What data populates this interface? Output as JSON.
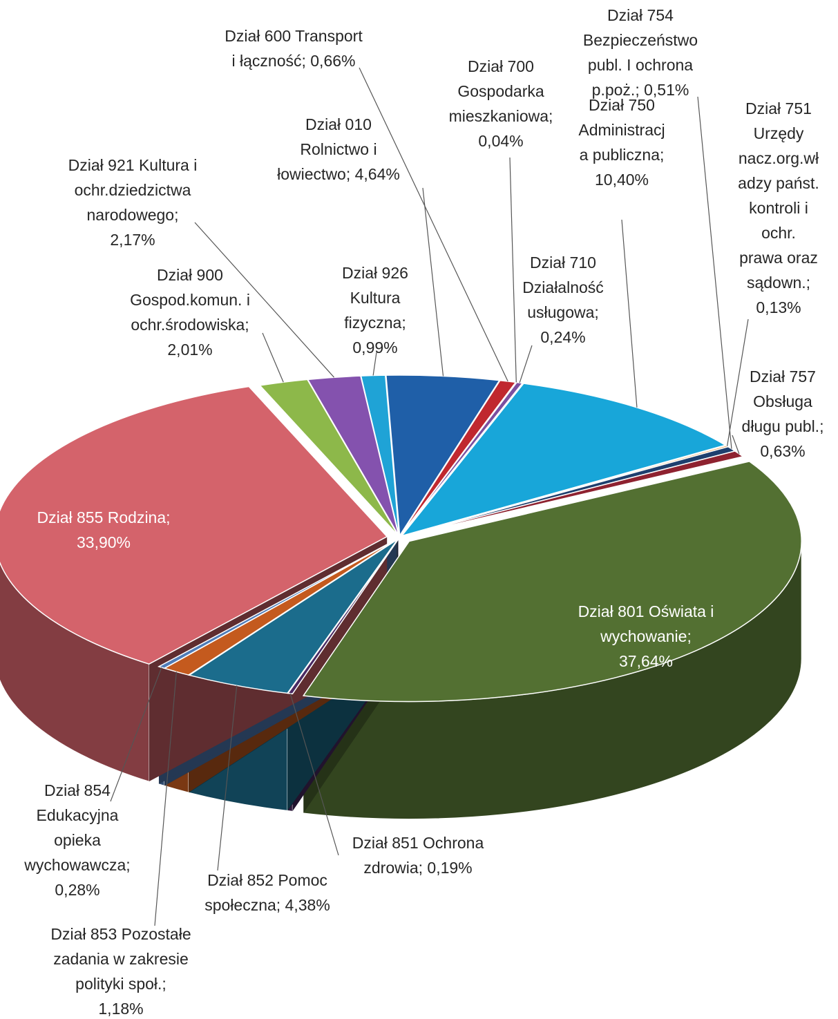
{
  "chart_data": {
    "type": "pie",
    "style": "3d-exploded",
    "title": "",
    "legend": "none",
    "slices": [
      {
        "name": "Dział 010 Rolnictwo i łowiectwo",
        "value": 4.64,
        "label": [
          "Dział 010",
          "Rolnictwo i",
          "łowiectwo; 4,64%"
        ],
        "color": "#1F5FA8"
      },
      {
        "name": "Dział 600 Transport i łączność",
        "value": 0.66,
        "label": [
          "Dział 600 Transport",
          "i łączność; 0,66%"
        ],
        "color": "#C0282F"
      },
      {
        "name": "Dział 700 Gospodarka mieszkaniowa",
        "value": 0.04,
        "label": [
          "Dział 700",
          "Gospodarka",
          "mieszkaniowa;",
          "0,04%"
        ],
        "color": "#7FA33A"
      },
      {
        "name": "Dział 710 Działalność usługowa",
        "value": 0.24,
        "label": [
          "Dział 710",
          "Działalność",
          "usługowa;",
          "0,24%"
        ],
        "color": "#7B4FA0"
      },
      {
        "name": "Dział 750 Administracja publiczna",
        "value": 10.4,
        "label": [
          "Dział 750",
          "Administracj",
          "a publiczna;",
          "10,40%"
        ],
        "color": "#18A6D9"
      },
      {
        "name": "Dział 751 Urzędy nacz.org.władzy państ. kontroli i ochr. prawa oraz sądown.",
        "value": 0.13,
        "label": [
          "Dział 751",
          "Urzędy",
          "nacz.org.wł",
          "adzy państ.",
          "kontroli i",
          "ochr.",
          "prawa oraz",
          "sądown.;",
          "0,13%"
        ],
        "color": "#F08C2A"
      },
      {
        "name": "Dział 754 Bezpieczeństwo publ. I ochrona p.poż.",
        "value": 0.51,
        "label": [
          "Dział 754",
          "Bezpieczeństwo",
          "publ. I ochrona",
          "p.poż.; 0,51%"
        ],
        "color": "#1E3F6E"
      },
      {
        "name": "Dział 757 Obsługa długu publ.",
        "value": 0.63,
        "label": [
          "Dział 757",
          "Obsługa",
          "długu publ.;",
          "0,63%"
        ],
        "color": "#8E2230"
      },
      {
        "name": "Dział 801 Oświata i wychowanie",
        "value": 37.64,
        "label": [
          "Dział 801 Oświata i",
          "wychowanie;",
          "37,64%"
        ],
        "color": "#537032"
      },
      {
        "name": "Dział 851 Ochrona zdrowia",
        "value": 0.19,
        "label": [
          "Dział 851 Ochrona",
          "zdrowia; 0,19%"
        ],
        "color": "#4A2A63"
      },
      {
        "name": "Dział 852 Pomoc społeczna",
        "value": 4.38,
        "label": [
          "Dział 852 Pomoc",
          "społeczna; 4,38%"
        ],
        "color": "#1B6C8C"
      },
      {
        "name": "Dział 853 Pozostałe zadania w zakresie polityki społ.",
        "value": 1.18,
        "label": [
          "Dział 853 Pozostałe",
          "zadania w zakresie",
          "polityki społ.;",
          "1,18%"
        ],
        "color": "#C45A1E"
      },
      {
        "name": "Dział 854 Edukacyjna opieka wychowawcza",
        "value": 0.28,
        "label": [
          "Dział 854",
          "Edukacyjna",
          "opieka",
          "wychowawcza;",
          "0,28%"
        ],
        "color": "#4F7CB8"
      },
      {
        "name": "Dział 855 Rodzina",
        "value": 33.9,
        "label": [
          "Dział 855 Rodzina;",
          "33,90%"
        ],
        "color": "#D4636B"
      },
      {
        "name": "Dział 900 Gospod.komun. i ochr.środowiska",
        "value": 2.01,
        "label": [
          "Dział 900",
          "Gospod.komun. i",
          "ochr.środowiska;",
          "2,01%"
        ],
        "color": "#8DB84A"
      },
      {
        "name": "Dział 921 Kultura i ochr.dziedzictwa narodowego",
        "value": 2.17,
        "label": [
          "Dział 921 Kultura i",
          "ochr.dziedzictwa",
          "narodowego;",
          "2,17%"
        ],
        "color": "#8452AE"
      },
      {
        "name": "Dział 926 Kultura fizyczna",
        "value": 0.99,
        "label": [
          "Dział 926",
          "Kultura",
          "fizyczna;",
          "0,99%"
        ],
        "color": "#1FA3D6"
      }
    ]
  }
}
